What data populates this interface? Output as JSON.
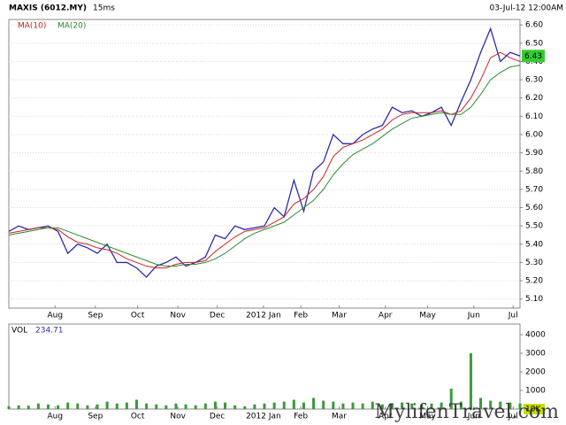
{
  "header": {
    "symbol": "MAXIS (6012.MY)",
    "interval": "15ms",
    "date": "03-Jul-12 12:00AM"
  },
  "chart_data": [
    {
      "type": "line",
      "xlim": [
        0,
        52
      ],
      "xticks": [
        {
          "value": 4.7,
          "label": "Aug"
        },
        {
          "value": 8.8,
          "label": "Sep"
        },
        {
          "value": 13.1,
          "label": "Oct"
        },
        {
          "value": 17.2,
          "label": "Nov"
        },
        {
          "value": 21.2,
          "label": "Dec"
        },
        {
          "value": 25.9,
          "label": "2012 Jan"
        },
        {
          "value": 29.7,
          "label": "Feb"
        },
        {
          "value": 33.6,
          "label": "Mar"
        },
        {
          "value": 38.3,
          "label": "Apr"
        },
        {
          "value": 42.6,
          "label": "May"
        },
        {
          "value": 47.3,
          "label": "Jun"
        },
        {
          "value": 51.3,
          "label": "Jul"
        }
      ],
      "ylim": [
        5.05,
        6.63
      ],
      "yticks": [
        {
          "value": 6.6,
          "label": "6.60"
        },
        {
          "value": 6.5,
          "label": "6.50"
        },
        {
          "value": 6.4,
          "label": "6.40"
        },
        {
          "value": 6.3,
          "label": "6.30"
        },
        {
          "value": 6.2,
          "label": "6.20"
        },
        {
          "value": 6.1,
          "label": "6.10"
        },
        {
          "value": 6.0,
          "label": "6.00"
        },
        {
          "value": 5.9,
          "label": "5.90"
        },
        {
          "value": 5.8,
          "label": "5.80"
        },
        {
          "value": 5.7,
          "label": "5.70"
        },
        {
          "value": 5.6,
          "label": "5.60"
        },
        {
          "value": 5.5,
          "label": "5.50"
        },
        {
          "value": 5.4,
          "label": "5.40"
        },
        {
          "value": 5.3,
          "label": "5.30"
        },
        {
          "value": 5.2,
          "label": "5.20"
        },
        {
          "value": 5.1,
          "label": "5.10"
        }
      ],
      "grid": true,
      "last_value": 6.43,
      "last_color": "#33cc33",
      "series": [
        {
          "color": "#2b2bb0",
          "values": [
            5.47,
            5.5,
            5.48,
            5.49,
            5.5,
            5.47,
            5.35,
            5.4,
            5.38,
            5.35,
            5.4,
            5.3,
            5.3,
            5.27,
            5.22,
            5.28,
            5.3,
            5.33,
            5.28,
            5.3,
            5.33,
            5.45,
            5.43,
            5.5,
            5.48,
            5.49,
            5.5,
            5.6,
            5.55,
            5.75,
            5.58,
            5.8,
            5.85,
            6.0,
            5.95,
            5.95,
            6.0,
            6.03,
            6.05,
            6.15,
            6.12,
            6.13,
            6.1,
            6.12,
            6.15,
            6.05,
            6.18,
            6.3,
            6.45,
            6.58,
            6.4,
            6.45,
            6.43
          ]
        },
        {
          "name": "MA(10)",
          "color": "#cc2222",
          "values": [
            5.46,
            5.47,
            5.48,
            5.49,
            5.49,
            5.48,
            5.44,
            5.41,
            5.4,
            5.38,
            5.37,
            5.35,
            5.32,
            5.3,
            5.28,
            5.27,
            5.27,
            5.29,
            5.3,
            5.3,
            5.31,
            5.36,
            5.4,
            5.44,
            5.47,
            5.48,
            5.49,
            5.52,
            5.55,
            5.62,
            5.65,
            5.7,
            5.77,
            5.88,
            5.93,
            5.95,
            5.97,
            6.0,
            6.03,
            6.08,
            6.11,
            6.12,
            6.12,
            6.12,
            6.13,
            6.11,
            6.13,
            6.2,
            6.3,
            6.42,
            6.45,
            6.42,
            6.4
          ]
        },
        {
          "name": "MA(20)",
          "color": "#2e8b2e",
          "values": [
            5.45,
            5.46,
            5.47,
            5.48,
            5.49,
            5.49,
            5.47,
            5.45,
            5.43,
            5.41,
            5.39,
            5.37,
            5.35,
            5.33,
            5.31,
            5.29,
            5.28,
            5.28,
            5.29,
            5.29,
            5.3,
            5.32,
            5.35,
            5.39,
            5.43,
            5.46,
            5.48,
            5.5,
            5.52,
            5.56,
            5.6,
            5.64,
            5.7,
            5.78,
            5.84,
            5.89,
            5.92,
            5.95,
            5.99,
            6.03,
            6.06,
            6.09,
            6.1,
            6.11,
            6.12,
            6.11,
            6.11,
            6.15,
            6.22,
            6.3,
            6.34,
            6.37,
            6.38
          ]
        }
      ]
    },
    {
      "type": "bar",
      "title": "VOL",
      "subtitle": "234.71",
      "corner_label": "10K",
      "color": "#3a9a3a",
      "xlim": [
        0,
        52
      ],
      "xticks": [
        {
          "value": 4.7,
          "label": "Aug"
        },
        {
          "value": 8.8,
          "label": "Sep"
        },
        {
          "value": 13.1,
          "label": "Oct"
        },
        {
          "value": 17.2,
          "label": "Nov"
        },
        {
          "value": 21.2,
          "label": "Dec"
        },
        {
          "value": 25.9,
          "label": "2012 Jan"
        },
        {
          "value": 29.7,
          "label": "Feb"
        },
        {
          "value": 33.6,
          "label": "Mar"
        },
        {
          "value": 38.3,
          "label": "Apr"
        },
        {
          "value": 42.6,
          "label": "May"
        },
        {
          "value": 47.3,
          "label": "Jun"
        },
        {
          "value": 51.3,
          "label": "Jul"
        }
      ],
      "ylim": [
        0,
        4570
      ],
      "yticks": [
        4000,
        3000,
        2000,
        1000
      ],
      "values": [
        150,
        200,
        180,
        300,
        250,
        200,
        350,
        300,
        200,
        250,
        400,
        300,
        350,
        500,
        300,
        250,
        200,
        300,
        250,
        200,
        300,
        400,
        350,
        200,
        150,
        250,
        300,
        350,
        400,
        500,
        350,
        600,
        450,
        400,
        300,
        350,
        300,
        400,
        250,
        300,
        350,
        300,
        250,
        300,
        350,
        1100,
        400,
        3000,
        600,
        450,
        400,
        350,
        300
      ]
    }
  ],
  "watermark": "MylifenTravel.com"
}
